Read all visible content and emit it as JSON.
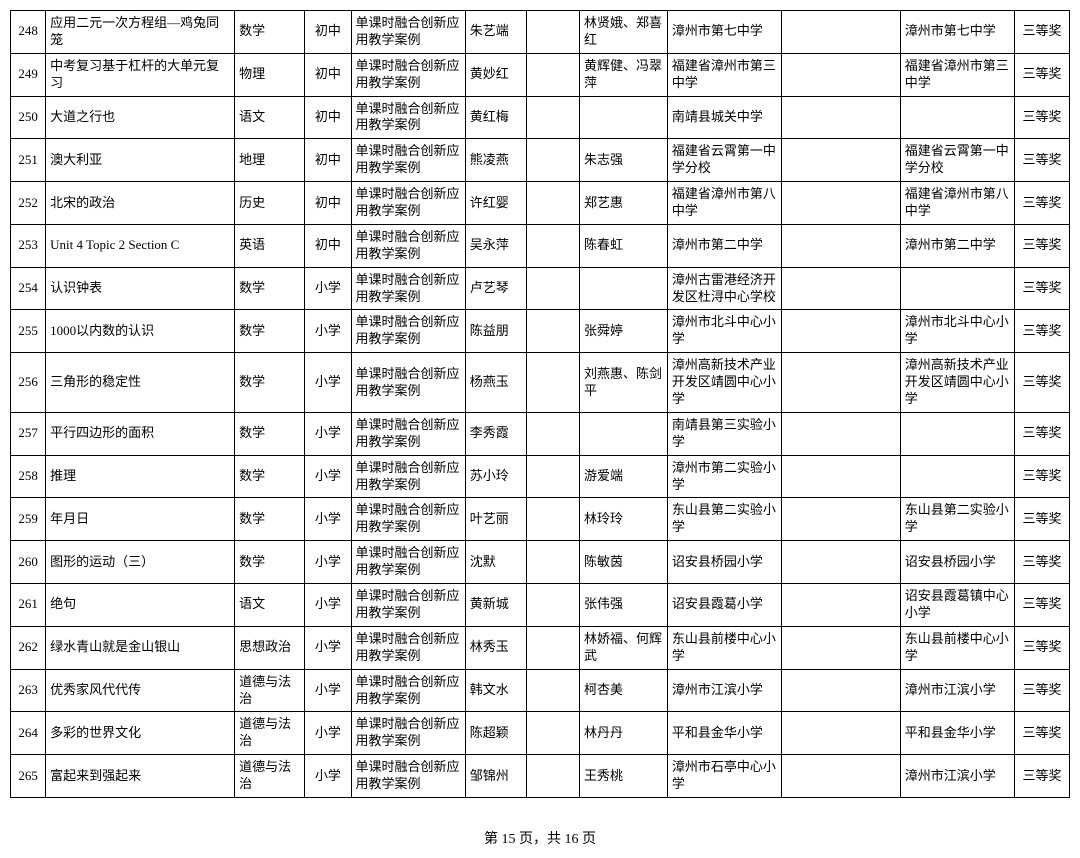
{
  "footer": "第 15 页，共 16 页",
  "colClasses": [
    "c0",
    "c1",
    "c2",
    "c3",
    "c4",
    "c5",
    "c6",
    "c7",
    "c8",
    "c9",
    "c10",
    "c11"
  ],
  "rows": [
    [
      "248",
      "应用二元一次方程组—鸡兔同笼",
      "数学",
      "初中",
      "单课时融合创新应用教学案例",
      "朱艺端",
      "",
      "林贤娥、郑喜红",
      "漳州市第七中学",
      "",
      "漳州市第七中学",
      "三等奖"
    ],
    [
      "249",
      "中考复习基于杠杆的大单元复习",
      "物理",
      "初中",
      "单课时融合创新应用教学案例",
      "黄妙红",
      "",
      "黄辉健、冯翠萍",
      "福建省漳州市第三中学",
      "",
      "福建省漳州市第三中学",
      "三等奖"
    ],
    [
      "250",
      "大道之行也",
      "语文",
      "初中",
      "单课时融合创新应用教学案例",
      "黄红梅",
      "",
      "",
      "南靖县城关中学",
      "",
      "",
      "三等奖"
    ],
    [
      "251",
      "澳大利亚",
      "地理",
      "初中",
      "单课时融合创新应用教学案例",
      "熊凌燕",
      "",
      "朱志强",
      "福建省云霄第一中学分校",
      "",
      "福建省云霄第一中学分校",
      "三等奖"
    ],
    [
      "252",
      "北宋的政治",
      "历史",
      "初中",
      "单课时融合创新应用教学案例",
      "许红婴",
      "",
      "郑艺惠",
      "福建省漳州市第八中学",
      "",
      "福建省漳州市第八中学",
      "三等奖"
    ],
    [
      "253",
      "Unit 4 Topic 2 Section C",
      "英语",
      "初中",
      "单课时融合创新应用教学案例",
      "吴永萍",
      "",
      "陈春虹",
      "漳州市第二中学",
      "",
      "漳州市第二中学",
      "三等奖"
    ],
    [
      "254",
      "认识钟表",
      "数学",
      "小学",
      "单课时融合创新应用教学案例",
      "卢艺琴",
      "",
      "",
      "漳州古雷港经济开发区杜浔中心学校",
      "",
      "",
      "三等奖"
    ],
    [
      "255",
      "1000以内数的认识",
      "数学",
      "小学",
      "单课时融合创新应用教学案例",
      "陈益朋",
      "",
      "张舜婷",
      "漳州市北斗中心小学",
      "",
      "漳州市北斗中心小学",
      "三等奖"
    ],
    [
      "256",
      "三角形的稳定性",
      "数学",
      "小学",
      "单课时融合创新应用教学案例",
      "杨燕玉",
      "",
      "刘燕惠、陈剑平",
      "漳州高新技术产业开发区靖圆中心小学",
      "",
      "漳州高新技术产业开发区靖圆中心小学",
      "三等奖"
    ],
    [
      "257",
      "平行四边形的面积",
      "数学",
      "小学",
      "单课时融合创新应用教学案例",
      "李秀霞",
      "",
      "",
      "南靖县第三实验小学",
      "",
      "",
      "三等奖"
    ],
    [
      "258",
      "推理",
      "数学",
      "小学",
      "单课时融合创新应用教学案例",
      "苏小玲",
      "",
      "游爱端",
      "漳州市第二实验小学",
      "",
      "",
      "三等奖"
    ],
    [
      "259",
      "年月日",
      "数学",
      "小学",
      "单课时融合创新应用教学案例",
      "叶艺丽",
      "",
      "林玲玲",
      "东山县第二实验小学",
      "",
      "东山县第二实验小学",
      "三等奖"
    ],
    [
      "260",
      "图形的运动（三）",
      "数学",
      "小学",
      "单课时融合创新应用教学案例",
      "沈默",
      "",
      "陈敏茵",
      "诏安县桥园小学",
      "",
      "诏安县桥园小学",
      "三等奖"
    ],
    [
      "261",
      "绝句",
      "语文",
      "小学",
      "单课时融合创新应用教学案例",
      "黄新城",
      "",
      "张伟强",
      "诏安县霞葛小学",
      "",
      "诏安县霞葛镇中心小学",
      "三等奖"
    ],
    [
      "262",
      "绿水青山就是金山银山",
      "思想政治",
      "小学",
      "单课时融合创新应用教学案例",
      "林秀玉",
      "",
      "林娇福、何辉武",
      "东山县前楼中心小学",
      "",
      "东山县前楼中心小学",
      "三等奖"
    ],
    [
      "263",
      "优秀家风代代传",
      "道德与法治",
      "小学",
      "单课时融合创新应用教学案例",
      "韩文水",
      "",
      "柯杏美",
      "漳州市江滨小学",
      "",
      "漳州市江滨小学",
      "三等奖"
    ],
    [
      "264",
      "多彩的世界文化",
      "道德与法治",
      "小学",
      "单课时融合创新应用教学案例",
      "陈超颖",
      "",
      "林丹丹",
      "平和县金华小学",
      "",
      "平和县金华小学",
      "三等奖"
    ],
    [
      "265",
      "富起来到强起来",
      "道德与法治",
      "小学",
      "单课时融合创新应用教学案例",
      "邹锦州",
      "",
      "王秀桃",
      "漳州市石亭中心小学",
      "",
      "漳州市江滨小学",
      "三等奖"
    ]
  ]
}
